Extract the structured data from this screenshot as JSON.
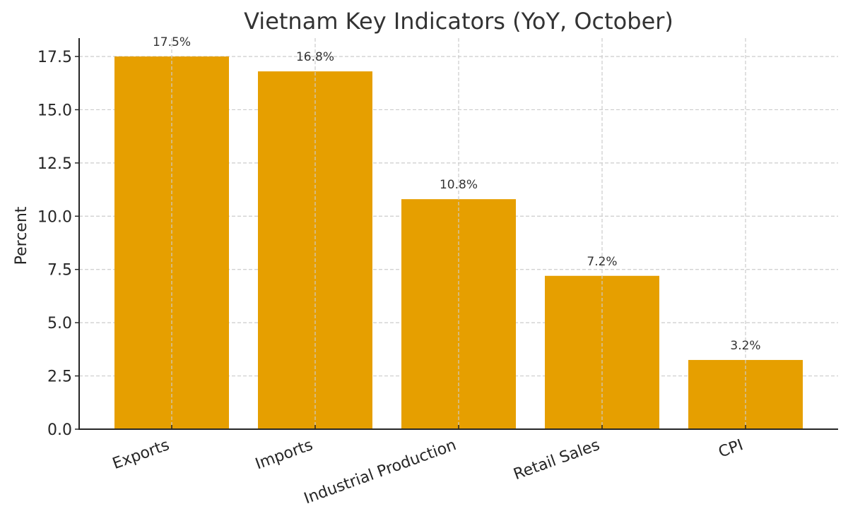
{
  "chart_data": {
    "type": "bar",
    "title": "Vietnam Key Indicators (YoY, October)",
    "xlabel": "",
    "ylabel": "Percent",
    "categories": [
      "Exports",
      "Imports",
      "Industrial Production",
      "Retail Sales",
      "CPI"
    ],
    "values": [
      17.5,
      16.8,
      10.8,
      7.2,
      3.25
    ],
    "data_labels": [
      "17.5%",
      "16.8%",
      "10.8%",
      "7.2%",
      "3.2%"
    ],
    "ylim": [
      0,
      18.375
    ],
    "yticks": [
      0.0,
      2.5,
      5.0,
      7.5,
      10.0,
      12.5,
      15.0,
      17.5
    ],
    "ytick_labels": [
      "0.0",
      "2.5",
      "5.0",
      "7.5",
      "10.0",
      "12.5",
      "15.0",
      "17.5"
    ],
    "xtick_rotation": -20,
    "grid": true,
    "grid_style": "dashed",
    "legend": null,
    "colors": {
      "bar": "#E69F00",
      "text": "#333333",
      "axis": "#262626",
      "grid": "#cccccc",
      "background": "#ffffff"
    }
  }
}
